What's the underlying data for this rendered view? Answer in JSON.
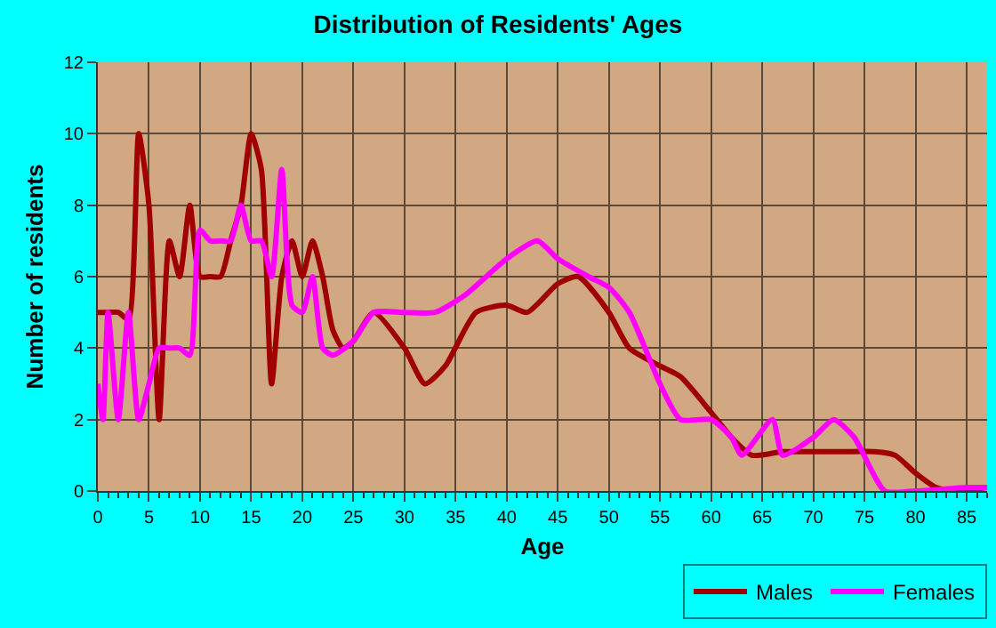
{
  "chart_data": {
    "type": "line",
    "title": "Distribution of Residents' Ages",
    "xlabel": "Age",
    "ylabel": "Number of residents",
    "xlim": [
      0,
      87
    ],
    "xticks": [
      0,
      5,
      10,
      15,
      20,
      25,
      30,
      35,
      40,
      45,
      50,
      55,
      60,
      65,
      70,
      75,
      80,
      85
    ],
    "ylim": [
      0,
      12
    ],
    "yticks": [
      0,
      2,
      4,
      6,
      8,
      10,
      12
    ],
    "grid": true,
    "legend": "bottom right",
    "marker": "none",
    "line_style": "solid",
    "series": [
      {
        "name": "Males",
        "color": "#a00000",
        "x": [
          0,
          1,
          2,
          3,
          4,
          5,
          6,
          7,
          8,
          9,
          10,
          11,
          12,
          13,
          14,
          15,
          16,
          17,
          18,
          19,
          20,
          21,
          22,
          23,
          24,
          25,
          27,
          30,
          32,
          34,
          37,
          40,
          42,
          45,
          47,
          50,
          52,
          55,
          57,
          60,
          62,
          64,
          67,
          70,
          73,
          76,
          78,
          80,
          82,
          84,
          87
        ],
        "values": [
          5,
          5,
          5,
          4.8,
          10,
          8,
          2,
          7,
          6,
          8,
          6,
          6,
          6,
          7,
          8,
          10,
          9,
          3,
          6,
          7,
          6,
          7,
          6,
          4.5,
          4,
          4.2,
          5,
          4,
          3,
          3.5,
          5,
          5.2,
          5,
          5.8,
          6,
          5,
          4,
          3.5,
          3.2,
          2.2,
          1.5,
          1,
          1.1,
          1.1,
          1.1,
          1.1,
          1,
          0.5,
          0.1,
          0,
          0.1
        ]
      },
      {
        "name": "Females",
        "color": "#ff00ff",
        "x": [
          0,
          0.5,
          1,
          2,
          3,
          4,
          5,
          6,
          7,
          8,
          9,
          10,
          11,
          12,
          13,
          14,
          15,
          16,
          17,
          18,
          19,
          20,
          21,
          22,
          23,
          25,
          27,
          30,
          33,
          36,
          40,
          43,
          45,
          48,
          50,
          52,
          55,
          57,
          60,
          62,
          63,
          66,
          67,
          70,
          72,
          74,
          77,
          80,
          85,
          87
        ],
        "values": [
          3,
          2,
          5,
          2,
          5,
          2,
          3,
          4,
          4,
          4,
          3.8,
          7.3,
          7,
          7,
          7,
          8,
          7,
          7,
          6,
          9,
          5.2,
          5,
          6,
          4,
          3.8,
          4.2,
          5,
          5,
          5,
          5.5,
          6.5,
          7,
          6.5,
          6,
          5.7,
          5,
          3,
          2,
          2,
          1.5,
          1,
          2,
          1,
          1.5,
          2,
          1.5,
          0,
          0,
          0.1,
          0.1
        ]
      }
    ]
  }
}
